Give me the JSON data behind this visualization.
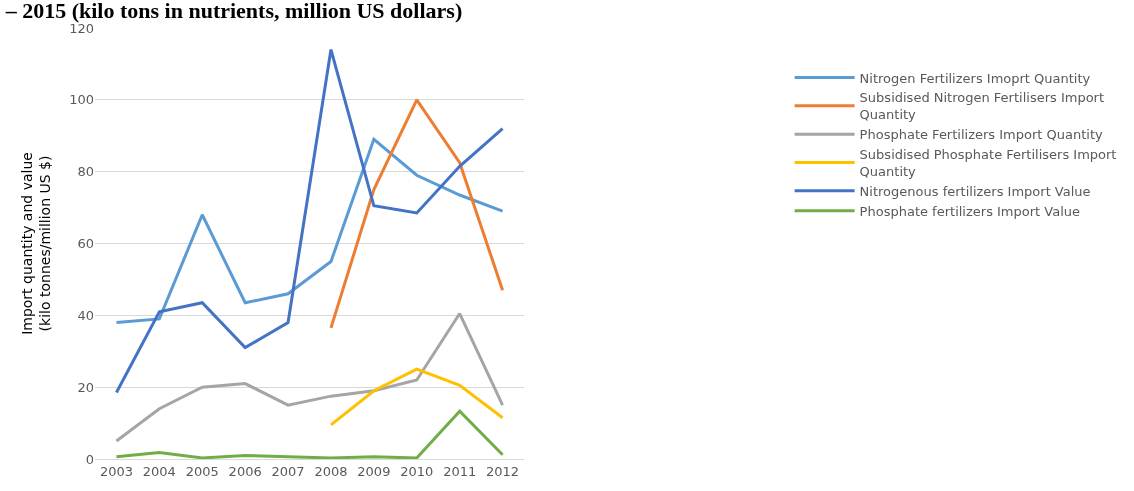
{
  "chart_data": {
    "type": "line",
    "title": "– 2015 (kilo tons in nutrients, million US dollars)",
    "ylabel": "Import quantity and value\n(kilo tonnes/million US $)",
    "categories": [
      "2003",
      "2004",
      "2005",
      "2006",
      "2007",
      "2008",
      "2009",
      "2010",
      "2011",
      "2012"
    ],
    "ylim": [
      0,
      120
    ],
    "yticks": [
      0,
      20,
      40,
      60,
      80,
      100,
      120
    ],
    "grid": "y",
    "legend": "right",
    "marker": "none",
    "line_style": "solid",
    "series": [
      {
        "name": "Nitrogen Fertilizers Imoprt Quantity",
        "color": "#5b9bd5",
        "values": [
          38,
          39,
          68,
          43.5,
          46,
          55,
          89,
          79,
          73.5,
          69
        ]
      },
      {
        "name": "Subsidised Nitrogen Fertilisers Import Quantity",
        "color": "#ed7d31",
        "values": [
          null,
          null,
          null,
          null,
          null,
          36.5,
          75,
          100,
          82.5,
          47
        ]
      },
      {
        "name": "Phosphate Fertilizers Import Quantity",
        "color": "#a5a5a5",
        "values": [
          5,
          14,
          20,
          21,
          15,
          17.5,
          19,
          22,
          40.5,
          15
        ]
      },
      {
        "name": "Subsidised Phosphate Fertilisers Import Quantity",
        "color": "#ffc000",
        "values": [
          null,
          null,
          null,
          null,
          null,
          9.5,
          19,
          25,
          20.5,
          11.5
        ]
      },
      {
        "name": "Nitrogenous fertilizers Import Value",
        "color": "#4472c4",
        "values": [
          18.5,
          41,
          43.5,
          31,
          38,
          114,
          70.5,
          68.5,
          81.5,
          92
        ]
      },
      {
        "name": "Phosphate fertilizers Import Value",
        "color": "#70ad47",
        "values": [
          0.6,
          1.8,
          0.3,
          1,
          0.6,
          0.3,
          0.6,
          0.3,
          13.3,
          1.2
        ]
      }
    ]
  }
}
